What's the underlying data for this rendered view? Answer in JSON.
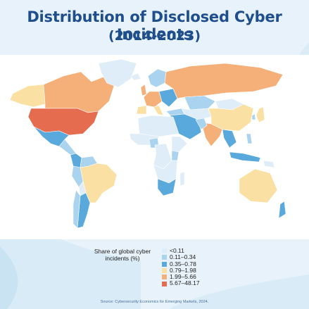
{
  "title": "Distribution of Disclosed Cyber Incidents",
  "subtitle": "(2014-2023)",
  "legend": {
    "title": "Share of global cyber incidents (%)",
    "items": [
      {
        "label": "<0.11",
        "color": "#deedf7"
      },
      {
        "label": "0.11–0.34",
        "color": "#a9d3ef"
      },
      {
        "label": "0.35–0.78",
        "color": "#5aa9dd"
      },
      {
        "label": "0.79–1.98",
        "color": "#fbe0a3"
      },
      {
        "label": "1.99–5.66",
        "color": "#f5b07a"
      },
      {
        "label": "5.67–48.17",
        "color": "#e56c4f"
      }
    ]
  },
  "source": "Source: Cybersecurity Economics for Emerging Markets, 2024.",
  "map": {
    "ocean_color": "#ffffff",
    "regions": [
      {
        "name": "Alaska",
        "class": 3
      },
      {
        "name": "Canada",
        "class": 4
      },
      {
        "name": "Greenland",
        "class": 0
      },
      {
        "name": "United States",
        "class": 5
      },
      {
        "name": "Mexico",
        "class": 2
      },
      {
        "name": "Central America",
        "class": 1
      },
      {
        "name": "Colombia",
        "class": 2
      },
      {
        "name": "Venezuela",
        "class": 1
      },
      {
        "name": "Brazil",
        "class": 3
      },
      {
        "name": "Peru",
        "class": 1
      },
      {
        "name": "Bolivia",
        "class": 0
      },
      {
        "name": "Argentina",
        "class": 2
      },
      {
        "name": "Chile",
        "class": 1
      },
      {
        "name": "Iceland",
        "class": 0
      },
      {
        "name": "United Kingdom",
        "class": 4
      },
      {
        "name": "Scandinavia",
        "class": 1
      },
      {
        "name": "Western Europe",
        "class": 4
      },
      {
        "name": "Iberia",
        "class": 3
      },
      {
        "name": "Italy",
        "class": 3
      },
      {
        "name": "Eastern Europe",
        "class": 2
      },
      {
        "name": "Russia",
        "class": 4
      },
      {
        "name": "Turkey",
        "class": 1
      },
      {
        "name": "Middle East",
        "class": 2
      },
      {
        "name": "Kazakhstan",
        "class": 1
      },
      {
        "name": "Central Asia",
        "class": 0
      },
      {
        "name": "Mongolia",
        "class": 0
      },
      {
        "name": "China",
        "class": 3
      },
      {
        "name": "Japan",
        "class": 3
      },
      {
        "name": "South Korea",
        "class": 1
      },
      {
        "name": "India",
        "class": 4
      },
      {
        "name": "Pakistan",
        "class": 1
      },
      {
        "name": "Southeast Asia",
        "class": 2
      },
      {
        "name": "Indonesia",
        "class": 2
      },
      {
        "name": "Philippines",
        "class": 1
      },
      {
        "name": "North Africa",
        "class": 0
      },
      {
        "name": "West Africa",
        "class": 0
      },
      {
        "name": "Nigeria",
        "class": 1
      },
      {
        "name": "Central Africa",
        "class": 0
      },
      {
        "name": "East Africa",
        "class": 0
      },
      {
        "name": "Kenya",
        "class": 1
      },
      {
        "name": "Southern Africa",
        "class": 0
      },
      {
        "name": "South Africa",
        "class": 2
      },
      {
        "name": "Madagascar",
        "class": 0
      },
      {
        "name": "Australia",
        "class": 3
      },
      {
        "name": "New Zealand",
        "class": 2
      },
      {
        "name": "Papua New Guinea",
        "class": 0
      }
    ]
  }
}
